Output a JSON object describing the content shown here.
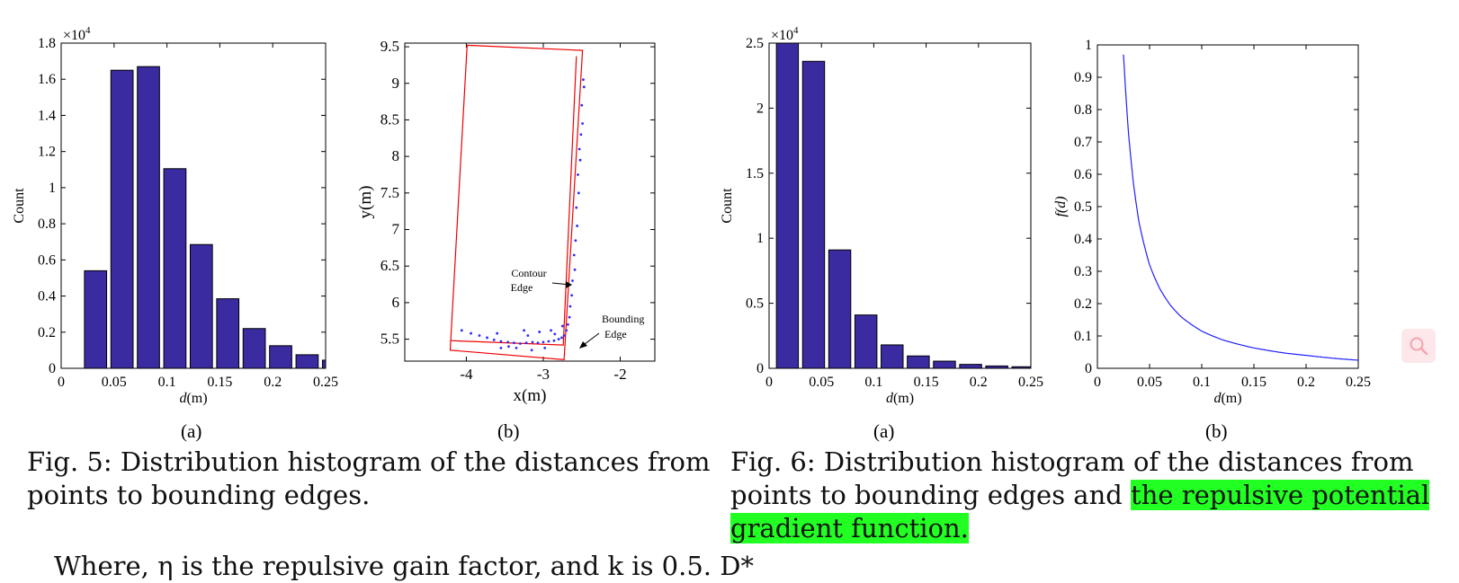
{
  "figures": [
    {
      "caption_lines": [
        "Fig. 5: Distribution histogram of the distances from",
        "points to bounding edges."
      ],
      "panels": [
        {
          "label": "(a)"
        },
        {
          "label": "(b)",
          "annotations": {
            "contour_line1": "Contour",
            "contour_line2": "Edge",
            "bounding_line1": "Bounding",
            "bounding_line2": "Edge"
          }
        }
      ]
    },
    {
      "caption_lines": [
        "Fig. 6: Distribution histogram of the distances from"
      ],
      "caption_line2_plain": "points to bounding edges and ",
      "caption_line2_highlight": "the repulsive potential",
      "caption_line3_highlight": "gradient function.",
      "highlight_color": "#22ff22",
      "panels": [
        {
          "label": "(a)"
        },
        {
          "label": "(b)"
        }
      ]
    }
  ],
  "body_text_partial": "Where, η is the repulsive gain factor, and k is 0.5. D*",
  "search_icon": "search-icon",
  "bar_color": "#3a2ba0",
  "chart_data": [
    {
      "id": "fig5a",
      "type": "bar",
      "xlabel": "d(m)",
      "ylabel": "Count",
      "exponent_label": "×10",
      "exponent_power": "4",
      "x": [
        0.0325,
        0.0575,
        0.0825,
        0.1075,
        0.1325,
        0.1575,
        0.1825,
        0.2075,
        0.2325,
        0.2575
      ],
      "values": [
        0.54,
        1.65,
        1.67,
        1.105,
        0.685,
        0.385,
        0.22,
        0.125,
        0.075,
        0.045
      ],
      "xlim": [
        0,
        0.25
      ],
      "ylim": [
        0,
        1.8
      ],
      "xticks": [
        0,
        0.05,
        0.1,
        0.15,
        0.2,
        0.25
      ],
      "xtick_labels": [
        "0",
        "0.05",
        "0.1",
        "0.15",
        "0.2",
        "0.25"
      ],
      "yticks": [
        0,
        0.2,
        0.4,
        0.6,
        0.8,
        1,
        1.2,
        1.4,
        1.6,
        1.8
      ],
      "ytick_labels": [
        "0",
        "0.2",
        "0.4",
        "0.6",
        "0.8",
        "1",
        "1.2",
        "1.4",
        "1.6",
        "1.8"
      ]
    },
    {
      "id": "fig5b",
      "type": "scatter",
      "xlabel": "x(m)",
      "ylabel": "y(m)",
      "xlim": [
        -4.8,
        -1.55
      ],
      "ylim": [
        5.2,
        9.55
      ],
      "xticks": [
        -4,
        -3,
        -2
      ],
      "xtick_labels": [
        "-4",
        "-3",
        "-2"
      ],
      "yticks": [
        5.5,
        6,
        6.5,
        7,
        7.5,
        8,
        8.5,
        9,
        9.5
      ],
      "ytick_labels": [
        "5.5",
        "6",
        "6.5",
        "7",
        "7.5",
        "8",
        "8.5",
        "9",
        "9.5"
      ],
      "outer_box": [
        [
          -3.99,
          9.52
        ],
        [
          -2.49,
          9.45
        ],
        [
          -2.73,
          5.22
        ],
        [
          -4.21,
          5.35
        ]
      ],
      "inner_box": [
        [
          -2.57,
          9.37
        ],
        [
          -2.74,
          5.42
        ],
        [
          -4.2,
          5.48
        ]
      ],
      "points": [
        [
          -2.48,
          9.05
        ],
        [
          -2.47,
          8.95
        ],
        [
          -2.5,
          8.7
        ],
        [
          -2.49,
          8.45
        ],
        [
          -2.51,
          8.3
        ],
        [
          -2.53,
          8.1
        ],
        [
          -2.52,
          7.95
        ],
        [
          -2.55,
          7.75
        ],
        [
          -2.54,
          7.5
        ],
        [
          -2.57,
          7.3
        ],
        [
          -2.56,
          7.05
        ],
        [
          -2.58,
          6.85
        ],
        [
          -2.6,
          6.65
        ],
        [
          -2.59,
          6.45
        ],
        [
          -2.62,
          6.3
        ],
        [
          -2.63,
          6.1
        ],
        [
          -2.65,
          5.95
        ],
        [
          -2.66,
          5.8
        ],
        [
          -2.68,
          5.7
        ],
        [
          -2.7,
          5.62
        ],
        [
          -2.73,
          5.55
        ],
        [
          -2.76,
          5.52
        ],
        [
          -2.8,
          5.5
        ],
        [
          -2.86,
          5.48
        ],
        [
          -2.93,
          5.47
        ],
        [
          -3.0,
          5.46
        ],
        [
          -3.07,
          5.45
        ],
        [
          -3.14,
          5.46
        ],
        [
          -3.22,
          5.45
        ],
        [
          -3.3,
          5.44
        ],
        [
          -3.38,
          5.45
        ],
        [
          -3.46,
          5.46
        ],
        [
          -3.55,
          5.47
        ],
        [
          -3.64,
          5.49
        ],
        [
          -3.73,
          5.52
        ],
        [
          -3.83,
          5.55
        ],
        [
          -3.94,
          5.58
        ],
        [
          -4.06,
          5.62
        ],
        [
          -3.2,
          5.55
        ],
        [
          -3.05,
          5.6
        ],
        [
          -3.35,
          5.38
        ],
        [
          -3.6,
          5.58
        ],
        [
          -2.9,
          5.62
        ],
        [
          -3.15,
          5.35
        ],
        [
          -2.75,
          5.68
        ],
        [
          -3.45,
          5.4
        ],
        [
          -2.98,
          5.38
        ],
        [
          -2.85,
          5.57
        ],
        [
          -3.25,
          5.62
        ],
        [
          -3.55,
          5.38
        ]
      ]
    },
    {
      "id": "fig6a",
      "type": "bar",
      "xlabel": "d(m)",
      "ylabel": "Count",
      "exponent_label": "×10",
      "exponent_power": "4",
      "x": [
        0.0175,
        0.0425,
        0.0675,
        0.0925,
        0.1175,
        0.1425,
        0.1675,
        0.1925,
        0.2175,
        0.2425
      ],
      "values": [
        2.5,
        2.36,
        0.91,
        0.41,
        0.18,
        0.095,
        0.055,
        0.03,
        0.018,
        0.012
      ],
      "xlim": [
        0,
        0.25
      ],
      "ylim": [
        0,
        2.5
      ],
      "xticks": [
        0,
        0.05,
        0.1,
        0.15,
        0.2,
        0.25
      ],
      "xtick_labels": [
        "0",
        "0.05",
        "0.1",
        "0.15",
        "0.2",
        "0.25"
      ],
      "yticks": [
        0,
        0.5,
        1,
        1.5,
        2,
        2.5
      ],
      "ytick_labels": [
        "0",
        "0.5",
        "1",
        "1.5",
        "2",
        "2.5"
      ]
    },
    {
      "id": "fig6b",
      "type": "line",
      "xlabel": "d(m)",
      "ylabel": "f(d)",
      "x": [
        0.025,
        0.03,
        0.035,
        0.04,
        0.05,
        0.06,
        0.07,
        0.08,
        0.1,
        0.12,
        0.15,
        0.18,
        0.2,
        0.22,
        0.25
      ],
      "values": [
        0.97,
        0.72,
        0.56,
        0.45,
        0.32,
        0.245,
        0.195,
        0.16,
        0.115,
        0.088,
        0.063,
        0.047,
        0.04,
        0.033,
        0.025
      ],
      "xlim": [
        0,
        0.25
      ],
      "ylim": [
        0,
        1
      ],
      "xticks": [
        0,
        0.05,
        0.1,
        0.15,
        0.2,
        0.25
      ],
      "xtick_labels": [
        "0",
        "0.05",
        "0.1",
        "0.15",
        "0.2",
        "0.25"
      ],
      "yticks": [
        0,
        0.1,
        0.2,
        0.3,
        0.4,
        0.5,
        0.6,
        0.7,
        0.8,
        0.9,
        1
      ],
      "ytick_labels": [
        "0",
        "0.1",
        "0.2",
        "0.3",
        "0.4",
        "0.5",
        "0.6",
        "0.7",
        "0.8",
        "0.9",
        "1"
      ],
      "line_color": "#1f1fff"
    }
  ]
}
